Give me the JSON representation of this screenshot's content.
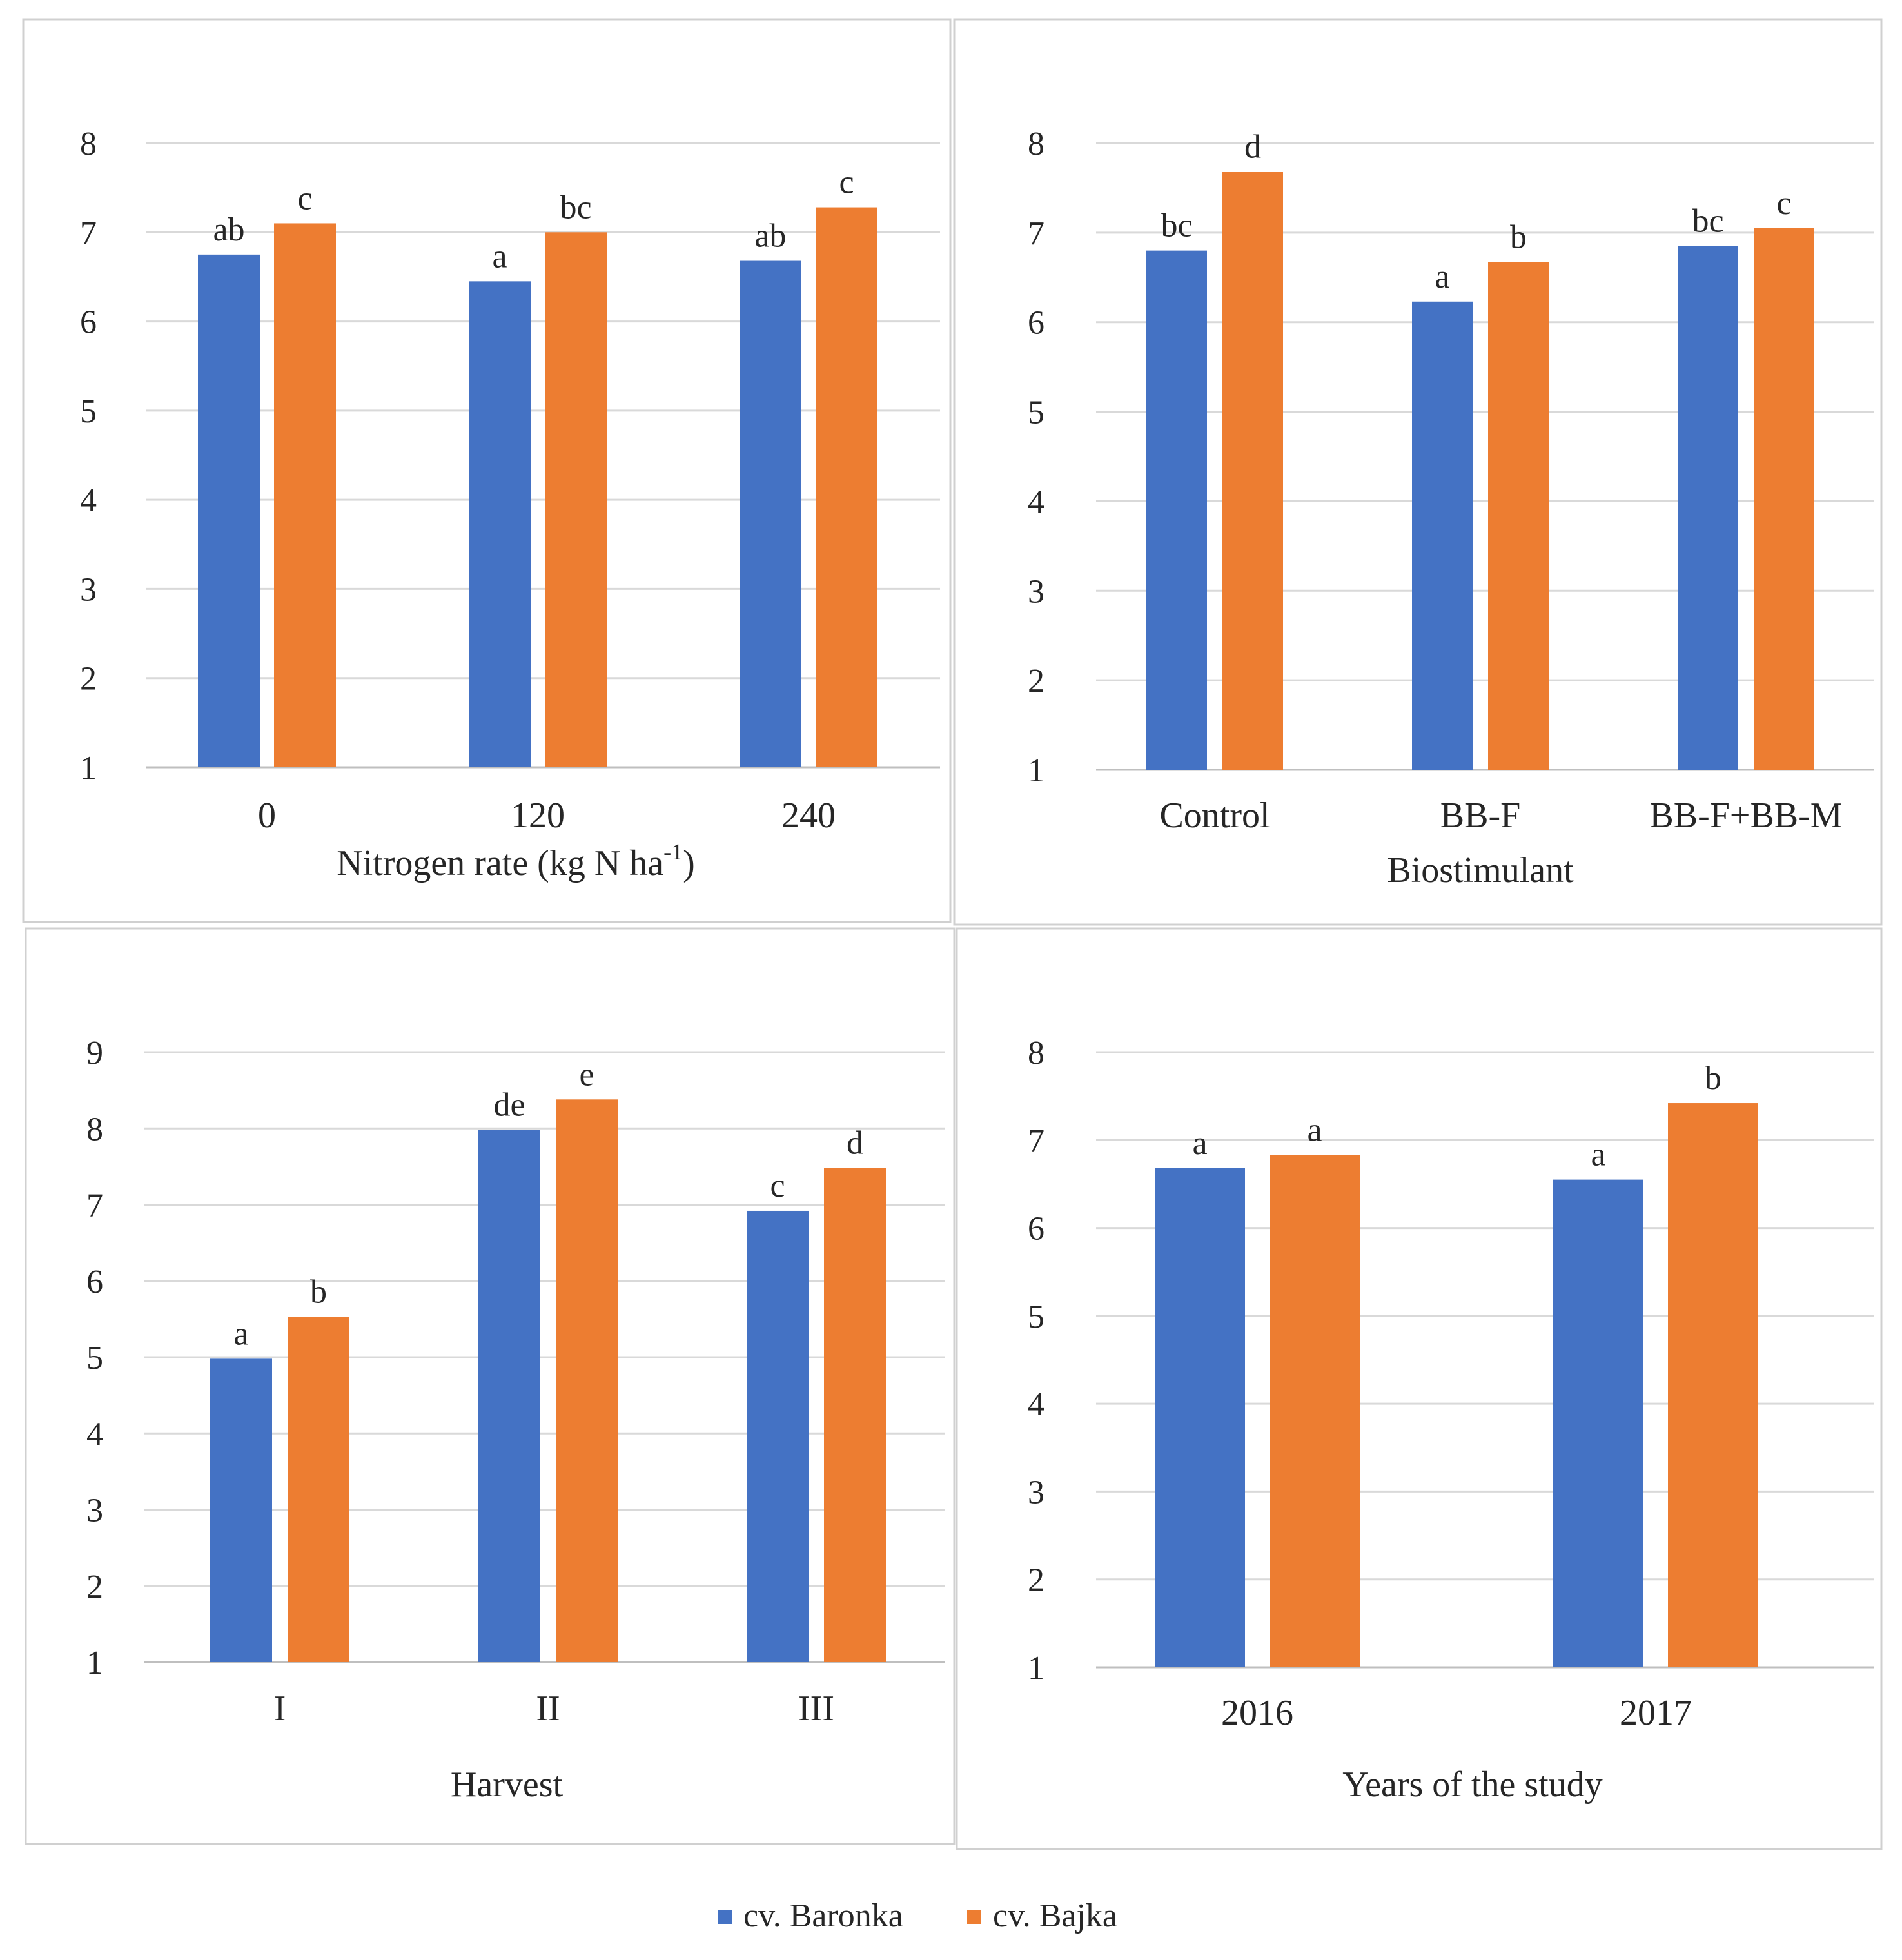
{
  "legend": {
    "position": "bottom-center",
    "entries": [
      {
        "name": "cv. Baronka",
        "color": "#4472C4"
      },
      {
        "name": "cv. Bajka",
        "color": "#ED7D31"
      }
    ]
  },
  "chart_data": [
    {
      "type": "bar",
      "xlabel": "Nitrogen rate (kg N ha",
      "xlabel_sup": "-1",
      "xlabel_end": ")",
      "ylabel": "",
      "ylim": [
        1,
        8
      ],
      "yticks": [
        "1",
        "2",
        "3",
        "4",
        "5",
        "6",
        "7",
        "8"
      ],
      "categories": [
        "0",
        "120",
        "240"
      ],
      "series": [
        {
          "name": "cv. Baronka",
          "color": "#4472C4",
          "values": [
            6.75,
            6.45,
            6.68
          ],
          "labels": [
            "ab",
            "a",
            "ab"
          ]
        },
        {
          "name": "cv. Bajka",
          "color": "#ED7D31",
          "values": [
            7.1,
            7.0,
            7.28
          ],
          "labels": [
            "c",
            "bc",
            "c"
          ]
        }
      ],
      "grid": true
    },
    {
      "type": "bar",
      "xlabel": "Biostimulant",
      "ylabel": "",
      "ylim": [
        1,
        8
      ],
      "yticks": [
        "1",
        "2",
        "3",
        "4",
        "5",
        "6",
        "7",
        "8"
      ],
      "categories": [
        "Control",
        "BB-F",
        "BB-F+BB-M"
      ],
      "series": [
        {
          "name": "cv. Baronka",
          "color": "#4472C4",
          "values": [
            6.8,
            6.23,
            6.85
          ],
          "labels": [
            "bc",
            "a",
            "bc"
          ]
        },
        {
          "name": "cv. Bajka",
          "color": "#ED7D31",
          "values": [
            7.68,
            6.67,
            7.05
          ],
          "labels": [
            "d",
            "b",
            "c"
          ]
        }
      ],
      "grid": true
    },
    {
      "type": "bar",
      "xlabel": "Harvest",
      "ylabel": "",
      "ylim": [
        1,
        9
      ],
      "yticks": [
        "1",
        "2",
        "3",
        "4",
        "5",
        "6",
        "7",
        "8",
        "9"
      ],
      "categories": [
        "I",
        "II",
        "III"
      ],
      "series": [
        {
          "name": "cv. Baronka",
          "color": "#4472C4",
          "values": [
            4.98,
            7.98,
            6.92
          ],
          "labels": [
            "a",
            "de",
            "c"
          ]
        },
        {
          "name": "cv. Bajka",
          "color": "#ED7D31",
          "values": [
            5.53,
            8.38,
            7.48
          ],
          "labels": [
            "b",
            "e",
            "d"
          ]
        }
      ],
      "grid": true
    },
    {
      "type": "bar",
      "xlabel": "Years of the study",
      "ylabel": "",
      "ylim": [
        1,
        8
      ],
      "yticks": [
        "1",
        "2",
        "3",
        "4",
        "5",
        "6",
        "7",
        "8"
      ],
      "categories": [
        "2016",
        "2017"
      ],
      "series": [
        {
          "name": "cv. Baronka",
          "color": "#4472C4",
          "values": [
            6.68,
            6.55
          ],
          "labels": [
            "a",
            "a"
          ]
        },
        {
          "name": "cv. Bajka",
          "color": "#ED7D31",
          "values": [
            6.83,
            7.42
          ],
          "labels": [
            "a",
            "b"
          ]
        }
      ],
      "grid": true
    }
  ]
}
